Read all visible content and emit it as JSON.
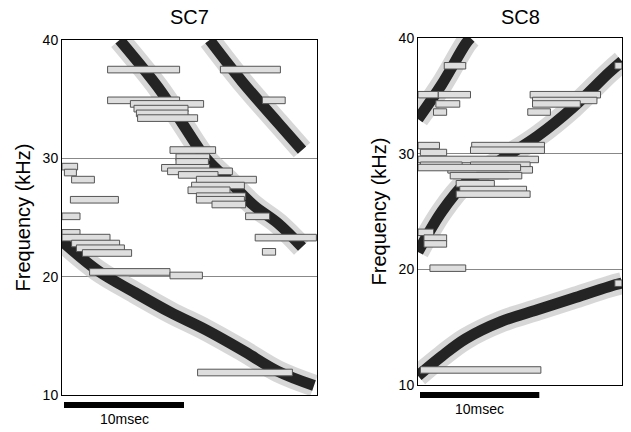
{
  "chart_data": [
    {
      "type": "spectrogram",
      "title": "SC7",
      "y_label": "Frequency (kHz)",
      "xlim": [
        0,
        21.25
      ],
      "ylim": [
        10,
        40
      ],
      "yticks": [
        10,
        20,
        30,
        40
      ],
      "grid": true,
      "tick_labels": "y",
      "color": "#111111",
      "scale_bar": {
        "value": 10,
        "label": "10msec"
      },
      "bands": [
        {
          "x": [
            0,
            3,
            6,
            9,
            12,
            15,
            18,
            21
          ],
          "y": [
            23,
            20.5,
            18.7,
            17,
            15.5,
            13.8,
            12,
            10.8
          ]
        },
        {
          "x": [
            4.8,
            8,
            10,
            12,
            14,
            16,
            18,
            20
          ],
          "y": [
            40,
            36,
            33,
            30,
            28,
            26,
            24.5,
            22.5
          ]
        },
        {
          "x": [
            12.3,
            15,
            18,
            20
          ],
          "y": [
            40,
            36.5,
            33,
            30.7
          ]
        }
      ],
      "bars": [
        {
          "x0": 3.8,
          "x1": 9.8,
          "y": 37.5
        },
        {
          "x0": 13.2,
          "x1": 18.2,
          "y": 37.5
        },
        {
          "x0": 16.7,
          "x1": 18.6,
          "y": 34.9
        },
        {
          "x0": 3.8,
          "x1": 9.8,
          "y": 34.9
        },
        {
          "x0": 5.7,
          "x1": 11.8,
          "y": 34.6
        },
        {
          "x0": 6,
          "x1": 10.5,
          "y": 34.2
        },
        {
          "x0": 6.2,
          "x1": 10.5,
          "y": 33.8
        },
        {
          "x0": 6.3,
          "x1": 11.3,
          "y": 33.4
        },
        {
          "x0": 9,
          "x1": 12.8,
          "y": 30.7
        },
        {
          "x0": 9.5,
          "x1": 12.3,
          "y": 30.1
        },
        {
          "x0": 9.5,
          "x1": 12.2,
          "y": 29.7
        },
        {
          "x0": 8.3,
          "x1": 12.3,
          "y": 29.2
        },
        {
          "x0": 8.8,
          "x1": 14.2,
          "y": 28.9
        },
        {
          "x0": 9.7,
          "x1": 13,
          "y": 28.6
        },
        {
          "x0": 0,
          "x1": 1.3,
          "y": 29.3
        },
        {
          "x0": 0.2,
          "x1": 1.2,
          "y": 28.8
        },
        {
          "x0": 0.8,
          "x1": 2.7,
          "y": 28.2
        },
        {
          "x0": 11.2,
          "x1": 16.2,
          "y": 28.2
        },
        {
          "x0": 10.8,
          "x1": 15.2,
          "y": 27.7
        },
        {
          "x0": 10.5,
          "x1": 14,
          "y": 27.3
        },
        {
          "x0": 11.2,
          "x1": 15.3,
          "y": 26.8
        },
        {
          "x0": 11.2,
          "x1": 15.2,
          "y": 26.5
        },
        {
          "x0": 0.7,
          "x1": 4.7,
          "y": 26.5
        },
        {
          "x0": 12.5,
          "x1": 15.3,
          "y": 26.1
        },
        {
          "x0": 15.3,
          "x1": 17.3,
          "y": 25.1
        },
        {
          "x0": 0,
          "x1": 1.5,
          "y": 25.1
        },
        {
          "x0": 0,
          "x1": 1.5,
          "y": 23.7
        },
        {
          "x0": 16.1,
          "x1": 21.2,
          "y": 23.3
        },
        {
          "x0": 0,
          "x1": 4,
          "y": 23.3
        },
        {
          "x0": 0.8,
          "x1": 4.8,
          "y": 22.8
        },
        {
          "x0": 1.2,
          "x1": 5.2,
          "y": 22.4
        },
        {
          "x0": 1.7,
          "x1": 5.8,
          "y": 22
        },
        {
          "x0": 16.7,
          "x1": 17.8,
          "y": 22.1
        },
        {
          "x0": 2.3,
          "x1": 9,
          "y": 20.4
        },
        {
          "x0": 9,
          "x1": 11.7,
          "y": 20.1
        },
        {
          "x0": 11.3,
          "x1": 19.2,
          "y": 11.9
        }
      ]
    },
    {
      "type": "spectrogram",
      "title": "SC8",
      "y_label": "Frequency (kHz)",
      "xlim": [
        0,
        17.1
      ],
      "ylim": [
        10,
        40
      ],
      "yticks": [
        10,
        20,
        30,
        40
      ],
      "grid": true,
      "tick_labels": "y",
      "color": "#111111",
      "scale_bar": {
        "value": 10,
        "label": "10msec"
      },
      "bands": [
        {
          "x": [
            0,
            2,
            4,
            7,
            10,
            13,
            16,
            17.1
          ],
          "y": [
            10.8,
            12.5,
            14,
            15.5,
            16.5,
            17.5,
            18.5,
            18.8
          ]
        },
        {
          "x": [
            0,
            2,
            4,
            7,
            10,
            13,
            16,
            17.1
          ],
          "y": [
            21.5,
            25,
            27.5,
            29.5,
            31.5,
            34,
            37,
            38
          ]
        },
        {
          "x": [
            0,
            2,
            4,
            4.4
          ],
          "y": [
            33,
            36,
            39.5,
            40
          ]
        }
      ],
      "bars": [
        {
          "x0": 0,
          "x1": 1.7,
          "y": 35.1
        },
        {
          "x0": 1.7,
          "x1": 4.4,
          "y": 35.1
        },
        {
          "x0": 2.2,
          "x1": 4,
          "y": 37.6
        },
        {
          "x0": 9.4,
          "x1": 15.3,
          "y": 35.1
        },
        {
          "x0": 9.6,
          "x1": 15,
          "y": 34.6
        },
        {
          "x0": 9.6,
          "x1": 13.6,
          "y": 34.3
        },
        {
          "x0": 9.2,
          "x1": 11.1,
          "y": 33.6
        },
        {
          "x0": 1.3,
          "x1": 2.4,
          "y": 33.6
        },
        {
          "x0": 1.5,
          "x1": 3.5,
          "y": 34.3
        },
        {
          "x0": 16.5,
          "x1": 17.1,
          "y": 37.6
        },
        {
          "x0": 0,
          "x1": 1.8,
          "y": 30.7
        },
        {
          "x0": 4.5,
          "x1": 10.6,
          "y": 30.7
        },
        {
          "x0": 4.4,
          "x1": 10.6,
          "y": 30.3
        },
        {
          "x0": 0.2,
          "x1": 2.4,
          "y": 30.1
        },
        {
          "x0": 0,
          "x1": 10.1,
          "y": 29.5
        },
        {
          "x0": 0.2,
          "x1": 3.7,
          "y": 29
        },
        {
          "x0": 4.4,
          "x1": 9.4,
          "y": 29
        },
        {
          "x0": 2.5,
          "x1": 9.6,
          "y": 28.6
        },
        {
          "x0": 0,
          "x1": 8.6,
          "y": 28.8
        },
        {
          "x0": 4.9,
          "x1": 7.6,
          "y": 28.1
        },
        {
          "x0": 2.7,
          "x1": 8.7,
          "y": 28.1
        },
        {
          "x0": 3.2,
          "x1": 6.4,
          "y": 27.4
        },
        {
          "x0": 3.5,
          "x1": 9.1,
          "y": 26.9
        },
        {
          "x0": 3.2,
          "x1": 9.4,
          "y": 26.5
        },
        {
          "x0": 0,
          "x1": 1.3,
          "y": 23.2
        },
        {
          "x0": 0.5,
          "x1": 2.4,
          "y": 22.7
        },
        {
          "x0": 0.5,
          "x1": 2.4,
          "y": 22.2
        },
        {
          "x0": 1,
          "x1": 4,
          "y": 20.1
        },
        {
          "x0": 16.5,
          "x1": 17.1,
          "y": 18.8
        },
        {
          "x0": 0.2,
          "x1": 10.3,
          "y": 11.3
        }
      ]
    }
  ]
}
